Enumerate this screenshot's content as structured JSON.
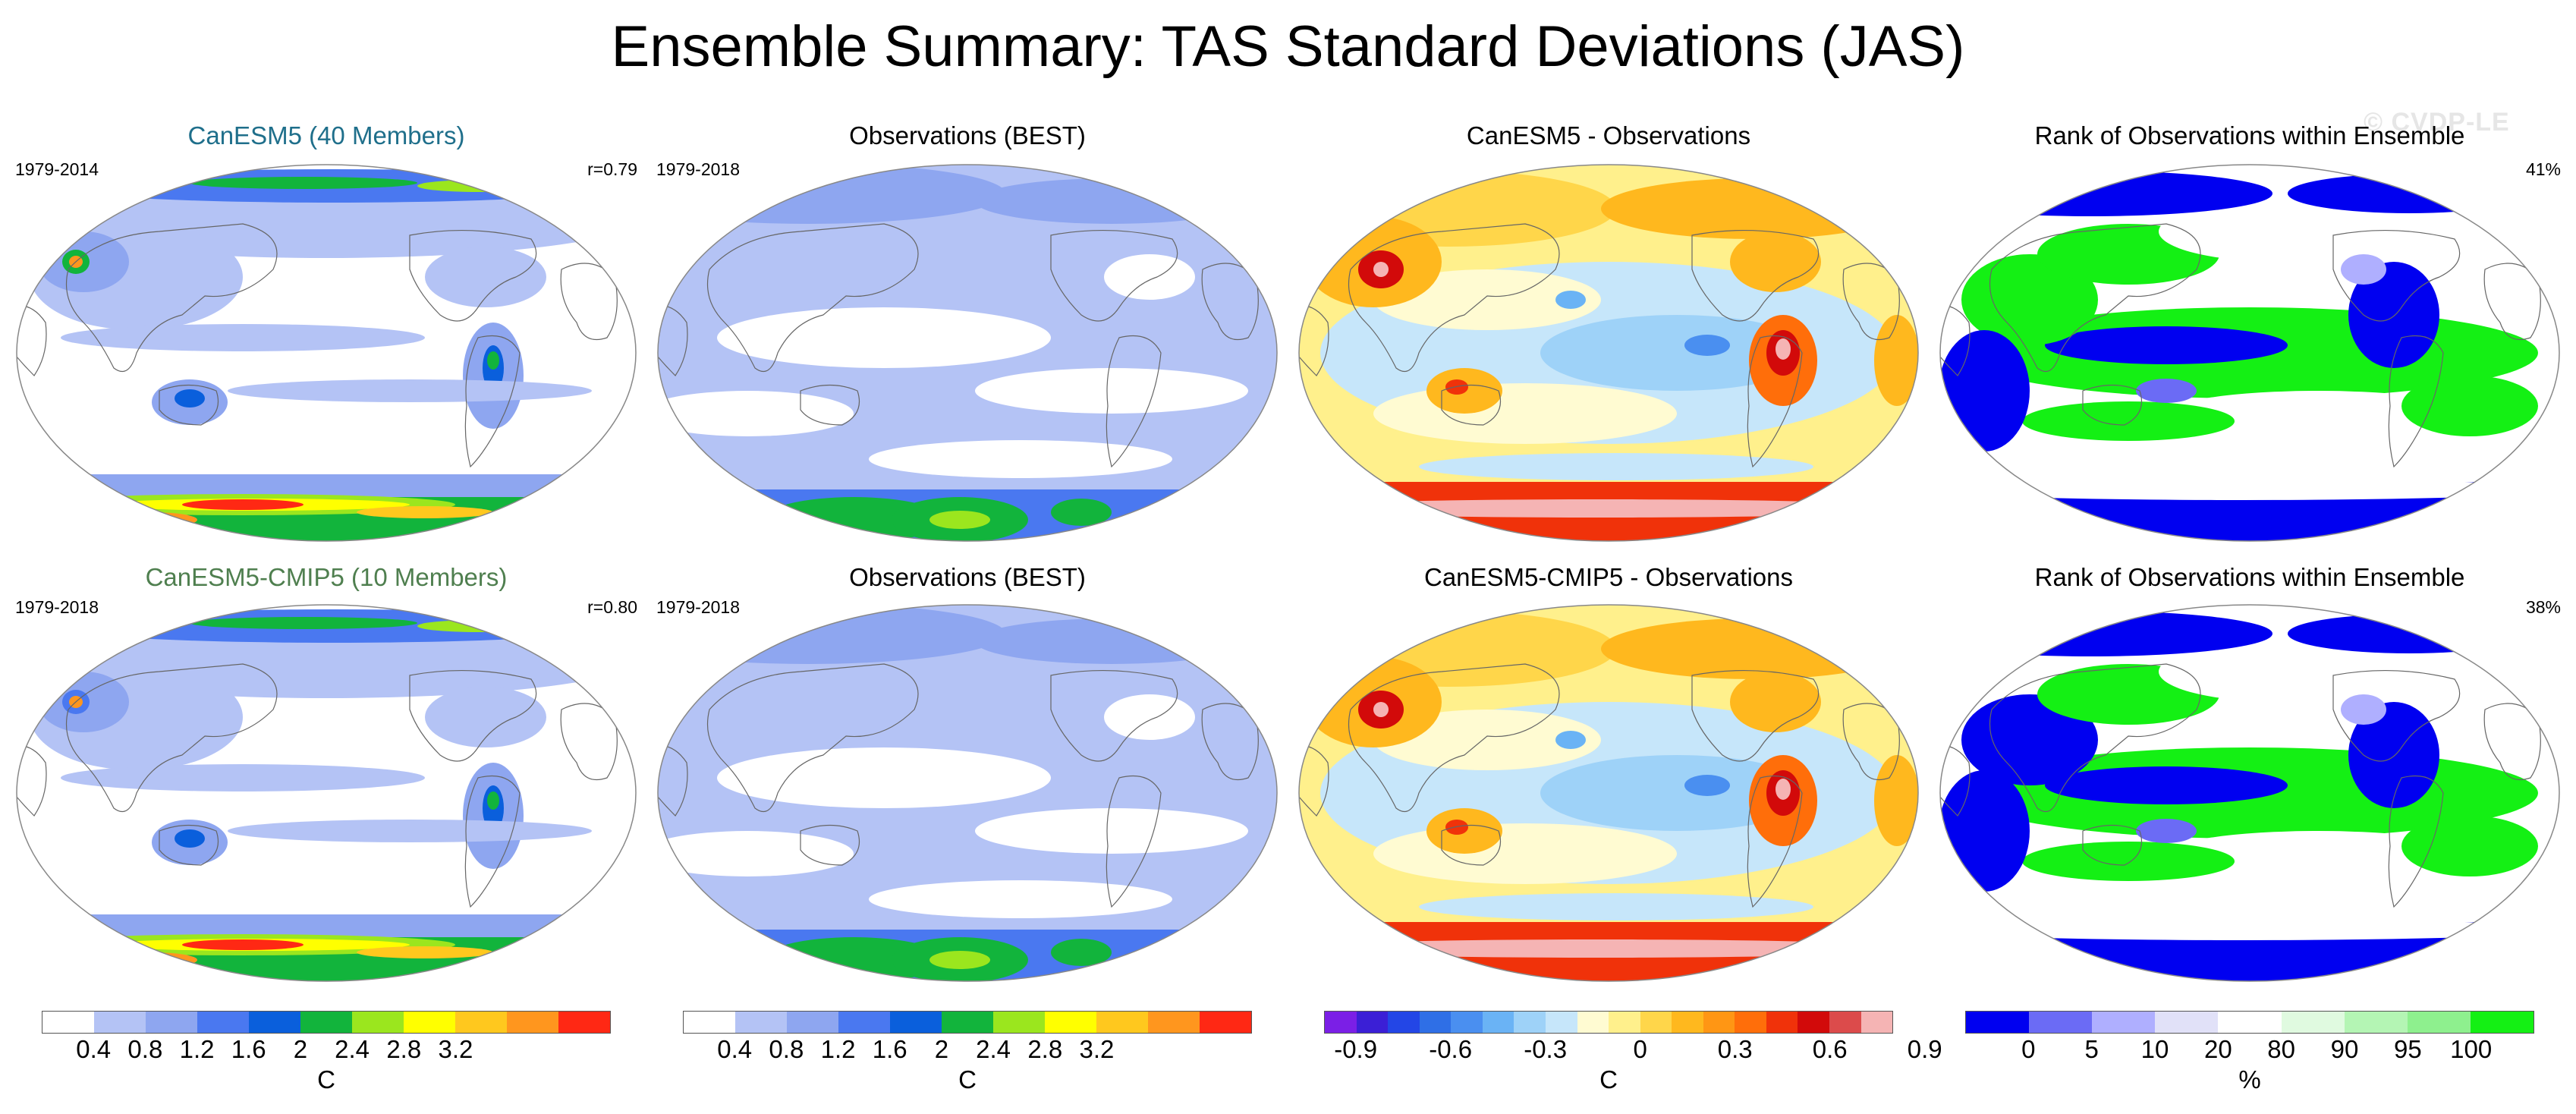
{
  "title": "Ensemble Summary: TAS Standard Deviations (JAS)",
  "watermark": "© CVDP-LE",
  "rows": [
    {
      "panels": [
        {
          "kind": "std",
          "title": "CanESM5 (40 Members)",
          "title_color": "#1f6f8b",
          "left_label": "1979-2014",
          "right_label": "r=0.79"
        },
        {
          "kind": "obs",
          "title": "Observations (BEST)",
          "title_color": "#000000",
          "left_label": "1979-2018",
          "right_label": ""
        },
        {
          "kind": "diff",
          "title": "CanESM5 - Observations",
          "title_color": "#000000",
          "left_label": "",
          "right_label": ""
        },
        {
          "kind": "rank",
          "title": "Rank of Observations within Ensemble",
          "title_color": "#000000",
          "left_label": "",
          "right_label": "41%"
        }
      ]
    },
    {
      "panels": [
        {
          "kind": "std",
          "title": "CanESM5-CMIP5 (10 Members)",
          "title_color": "#4f7f4f",
          "left_label": "1979-2018",
          "right_label": "r=0.80"
        },
        {
          "kind": "obs",
          "title": "Observations (BEST)",
          "title_color": "#000000",
          "left_label": "1979-2018",
          "right_label": ""
        },
        {
          "kind": "diff",
          "title": "CanESM5-CMIP5 - Observations",
          "title_color": "#000000",
          "left_label": "",
          "right_label": ""
        },
        {
          "kind": "rank",
          "title": "Rank of Observations within Ensemble",
          "title_color": "#000000",
          "left_label": "",
          "right_label": "38%"
        }
      ]
    }
  ],
  "colorbars": [
    {
      "name": "model-std",
      "unit": "C",
      "colors": [
        "#ffffff",
        "#b4c3f5",
        "#8ea6f0",
        "#4a78f0",
        "#0a5fdc",
        "#12b43c",
        "#9be61e",
        "#ffff00",
        "#ffc81e",
        "#ff961e",
        "#ff2814"
      ],
      "ticks": [
        "0.4",
        "0.8",
        "1.2",
        "1.6",
        "2",
        "2.4",
        "2.8",
        "3.2"
      ]
    },
    {
      "name": "obs-std",
      "unit": "C",
      "colors": [
        "#ffffff",
        "#b4c3f5",
        "#8ea6f0",
        "#4a78f0",
        "#0a5fdc",
        "#12b43c",
        "#9be61e",
        "#ffff00",
        "#ffc81e",
        "#ff961e",
        "#ff2814"
      ],
      "ticks": [
        "0.4",
        "0.8",
        "1.2",
        "1.6",
        "2",
        "2.4",
        "2.8",
        "3.2"
      ]
    },
    {
      "name": "difference",
      "unit": "C",
      "colors": [
        "#7b1fe6",
        "#3b1fd6",
        "#2346e6",
        "#2f6fe6",
        "#4a8ff0",
        "#6ab3f5",
        "#9ed2f8",
        "#c6e6fa",
        "#fffbd2",
        "#fff08c",
        "#ffd64a",
        "#ffb81e",
        "#ff9614",
        "#ff6e0a",
        "#f0320a",
        "#d20a0a",
        "#dc4b4b",
        "#f5b4b4"
      ],
      "ticks": [
        "-0.9",
        "-0.6",
        "-0.3",
        "0",
        "0.3",
        "0.6",
        "0.9"
      ]
    },
    {
      "name": "rank",
      "unit": "%",
      "colors": [
        "#0000f0",
        "#6b6bf5",
        "#afafff",
        "#e1e1f8",
        "#ffffff",
        "#e0fae0",
        "#b4f5b4",
        "#8ef08e",
        "#14f014"
      ],
      "ticks": [
        "0",
        "5",
        "10",
        "20",
        "80",
        "90",
        "95",
        "100"
      ]
    }
  ]
}
